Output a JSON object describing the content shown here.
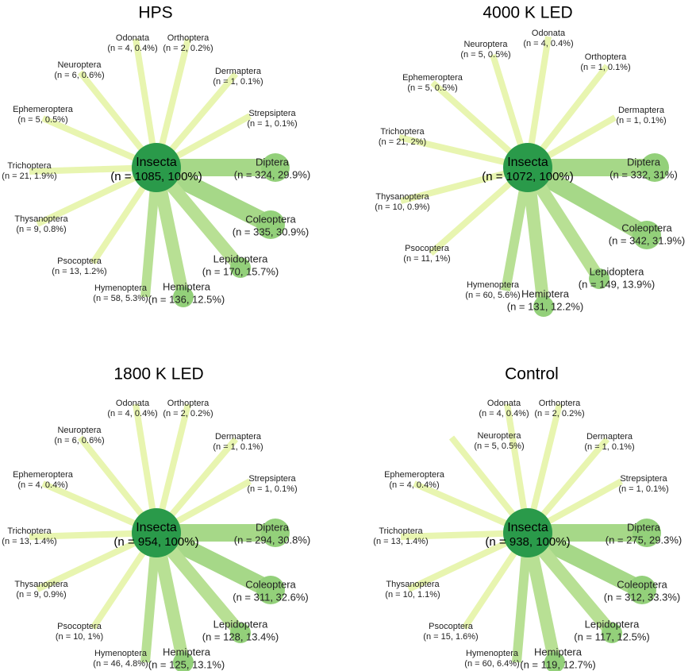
{
  "colors": {
    "hub": "#2a9a4a",
    "big_node": "#93d07a",
    "mid_edge": "#b8e094",
    "small_edge": "#e8f5b0",
    "top_edge": "#a6d888"
  },
  "panels": [
    {
      "title": "HPS",
      "hub": {
        "name": "Insecta",
        "count": "(n = 1085, 100%)"
      },
      "nodes": [
        {
          "name": "Odonata",
          "count": "(n = 4, 0.4%)"
        },
        {
          "name": "Orthoptera",
          "count": "(n = 2, 0.2%)"
        },
        {
          "name": "Dermaptera",
          "count": "(n = 1, 0.1%)"
        },
        {
          "name": "Strepsiptera",
          "count": "(n = 1, 0.1%)"
        },
        {
          "name": "Diptera",
          "count": "(n = 324, 29.9%)"
        },
        {
          "name": "Coleoptera",
          "count": "(n = 335, 30.9%)"
        },
        {
          "name": "Lepidoptera",
          "count": "(n = 170, 15.7%)"
        },
        {
          "name": "Hemiptera",
          "count": "(n = 136, 12.5%)"
        },
        {
          "name": "Hymenoptera",
          "count": "(n = 58, 5.3%)"
        },
        {
          "name": "Psocoptera",
          "count": "(n = 13, 1.2%)"
        },
        {
          "name": "Thysanoptera",
          "count": "(n = 9, 0.8%)"
        },
        {
          "name": "Trichoptera",
          "count": "(n = 21, 1.9%)"
        },
        {
          "name": "Ephemeroptera",
          "count": "(n = 5, 0.5%)"
        },
        {
          "name": "Neuroptera",
          "count": "(n = 6, 0.6%)"
        }
      ]
    },
    {
      "title": "4000 K LED",
      "hub": {
        "name": "Insecta",
        "count": "(n = 1072, 100%)"
      },
      "nodes": [
        {
          "name": "Neuroptera",
          "count": "(n = 5, 0.5%)"
        },
        {
          "name": "Odonata",
          "count": "(n = 4, 0.4%)"
        },
        {
          "name": "Orthoptera",
          "count": "(n = 1, 0.1%)"
        },
        {
          "name": "Dermaptera",
          "count": "(n = 1, 0.1%)"
        },
        {
          "name": "Diptera",
          "count": "(n = 332, 31%)"
        },
        {
          "name": "Coleoptera",
          "count": "(n = 342, 31.9%)"
        },
        {
          "name": "Lepidoptera",
          "count": "(n = 149, 13.9%)"
        },
        {
          "name": "Hemiptera",
          "count": "(n = 131, 12.2%)"
        },
        {
          "name": "Hymenoptera",
          "count": "(n = 60, 5.6%)"
        },
        {
          "name": "Psocoptera",
          "count": "(n = 11, 1%)"
        },
        {
          "name": "Thysanoptera",
          "count": "(n = 10, 0.9%)"
        },
        {
          "name": "Trichoptera",
          "count": "(n = 21, 2%)"
        },
        {
          "name": "Ephemeroptera",
          "count": "(n = 5, 0.5%)"
        }
      ]
    },
    {
      "title": "1800 K LED",
      "hub": {
        "name": "Insecta",
        "count": "(n = 954, 100%)"
      },
      "nodes": [
        {
          "name": "Odonata",
          "count": "(n = 4, 0.4%)"
        },
        {
          "name": "Orthoptera",
          "count": "(n = 2, 0.2%)"
        },
        {
          "name": "Dermaptera",
          "count": "(n = 1, 0.1%)"
        },
        {
          "name": "Strepsiptera",
          "count": "(n = 1, 0.1%)"
        },
        {
          "name": "Diptera",
          "count": "(n = 294, 30.8%)"
        },
        {
          "name": "Coleoptera",
          "count": "(n = 311, 32.6%)"
        },
        {
          "name": "Lepidoptera",
          "count": "(n = 128, 13.4%)"
        },
        {
          "name": "Hemiptera",
          "count": "(n = 125, 13.1%)"
        },
        {
          "name": "Hymenoptera",
          "count": "(n = 46, 4.8%)"
        },
        {
          "name": "Psocoptera",
          "count": "(n = 10, 1%)"
        },
        {
          "name": "Thysanoptera",
          "count": "(n = 9, 0.9%)"
        },
        {
          "name": "Trichoptera",
          "count": "(n = 13, 1.4%)"
        },
        {
          "name": "Ephemeroptera",
          "count": "(n = 4, 0.4%)"
        },
        {
          "name": "Neuroptera",
          "count": "(n = 6, 0.6%)"
        }
      ]
    },
    {
      "title": "Control",
      "hub": {
        "name": "Insecta",
        "count": "(n = 938, 100%)"
      },
      "nodes": [
        {
          "name": "Odonata",
          "count": "(n = 4, 0.4%)"
        },
        {
          "name": "Orthoptera",
          "count": "(n = 2, 0.2%)"
        },
        {
          "name": "Dermaptera",
          "count": "(n = 1, 0.1%)"
        },
        {
          "name": "Strepsiptera",
          "count": "(n = 1, 0.1%)"
        },
        {
          "name": "Diptera",
          "count": "(n = 275, 29.3%)"
        },
        {
          "name": "Coleoptera",
          "count": "(n = 312, 33.3%)"
        },
        {
          "name": "Lepidoptera",
          "count": "(n = 117, 12.5%)"
        },
        {
          "name": "Hemiptera",
          "count": "(n = 119, 12.7%)"
        },
        {
          "name": "Hymenoptera",
          "count": "(n = 60, 6.4%)"
        },
        {
          "name": "Psocoptera",
          "count": "(n = 15, 1.6%)"
        },
        {
          "name": "Thysanoptera",
          "count": "(n = 10, 1.1%)"
        },
        {
          "name": "Trichoptera",
          "count": "(n = 13, 1.4%)"
        },
        {
          "name": "Ephemeroptera",
          "count": "(n = 4, 0.4%)"
        },
        {
          "name": "Neuroptera",
          "count": "(n = 5, 0.5%)"
        }
      ]
    }
  ]
}
